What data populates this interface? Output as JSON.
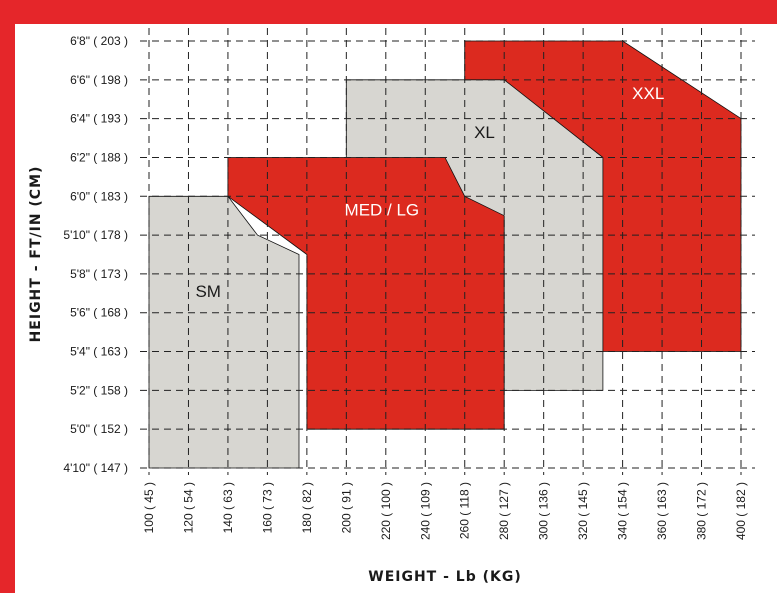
{
  "chart_data": {
    "type": "area",
    "title": "",
    "xlabel": "WEIGHT - Lb (KG)",
    "ylabel": "HEIGHT - FT/IN (CM)",
    "x_ticks": [
      {
        "value": 100,
        "label": "100 ( 45 )"
      },
      {
        "value": 120,
        "label": "120 ( 54 )"
      },
      {
        "value": 140,
        "label": "140 ( 63 )"
      },
      {
        "value": 160,
        "label": "160 ( 73 )"
      },
      {
        "value": 180,
        "label": "180 ( 82 )"
      },
      {
        "value": 200,
        "label": "200 ( 91 )"
      },
      {
        "value": 220,
        "label": "220 ( 100 )"
      },
      {
        "value": 240,
        "label": "240 ( 109 )"
      },
      {
        "value": 260,
        "label": "260 ( 118 )"
      },
      {
        "value": 280,
        "label": "280 ( 127 )"
      },
      {
        "value": 300,
        "label": "300 ( 136 )"
      },
      {
        "value": 320,
        "label": "320 ( 145 )"
      },
      {
        "value": 340,
        "label": "340 ( 154 )"
      },
      {
        "value": 360,
        "label": "360 ( 163 )"
      },
      {
        "value": 380,
        "label": "380 ( 172 )"
      },
      {
        "value": 400,
        "label": "400 ( 182 )"
      }
    ],
    "y_ticks": [
      {
        "value": 58,
        "label": "4'10\" ( 147 )"
      },
      {
        "value": 60,
        "label": "5'0\" ( 152 )"
      },
      {
        "value": 62,
        "label": "5'2\" ( 158 )"
      },
      {
        "value": 64,
        "label": "5'4\" ( 163 )"
      },
      {
        "value": 66,
        "label": "5'6\" ( 168 )"
      },
      {
        "value": 68,
        "label": "5'8\" ( 173 )"
      },
      {
        "value": 70,
        "label": "5'10\" ( 178 )"
      },
      {
        "value": 72,
        "label": "6'0\" ( 183 )"
      },
      {
        "value": 74,
        "label": "6'2\" ( 188 )"
      },
      {
        "value": 76,
        "label": "6'4\" ( 193 )"
      },
      {
        "value": 78,
        "label": "6'6\" ( 198 )"
      },
      {
        "value": 80,
        "label": "6'8\" ( 203 )"
      }
    ],
    "xlim": [
      100,
      400
    ],
    "ylim": [
      58,
      80
    ],
    "grid": true,
    "series": [
      {
        "name": "XXL",
        "color": "#dc2a1f",
        "text_color": "#ffffff",
        "polygon": [
          [
            260,
            80
          ],
          [
            340,
            80
          ],
          [
            400,
            76
          ],
          [
            400,
            64
          ],
          [
            260,
            64
          ]
        ],
        "label_at": [
          353,
          77
        ]
      },
      {
        "name": "XL",
        "color": "#d7d6d1",
        "text_color": "#1a1a1a",
        "polygon": [
          [
            200,
            78
          ],
          [
            280,
            78
          ],
          [
            330,
            74
          ],
          [
            330,
            62
          ],
          [
            200,
            62
          ]
        ],
        "label_at": [
          270,
          75
        ]
      },
      {
        "name": "MED / LG",
        "color": "#dc2a1f",
        "text_color": "#ffffff",
        "polygon": [
          [
            140,
            74
          ],
          [
            250,
            74
          ],
          [
            260,
            72
          ],
          [
            280,
            71
          ],
          [
            280,
            60
          ],
          [
            180,
            60
          ],
          [
            180,
            69
          ],
          [
            140,
            72
          ]
        ],
        "label_at": [
          218,
          71
        ]
      },
      {
        "name": "SM",
        "color": "#d7d6d1",
        "text_color": "#1a1a1a",
        "polygon": [
          [
            100,
            72
          ],
          [
            140,
            72
          ],
          [
            155,
            70
          ],
          [
            176,
            69
          ],
          [
            176,
            58
          ],
          [
            100,
            58
          ]
        ],
        "label_at": [
          130,
          66.8
        ]
      }
    ]
  }
}
